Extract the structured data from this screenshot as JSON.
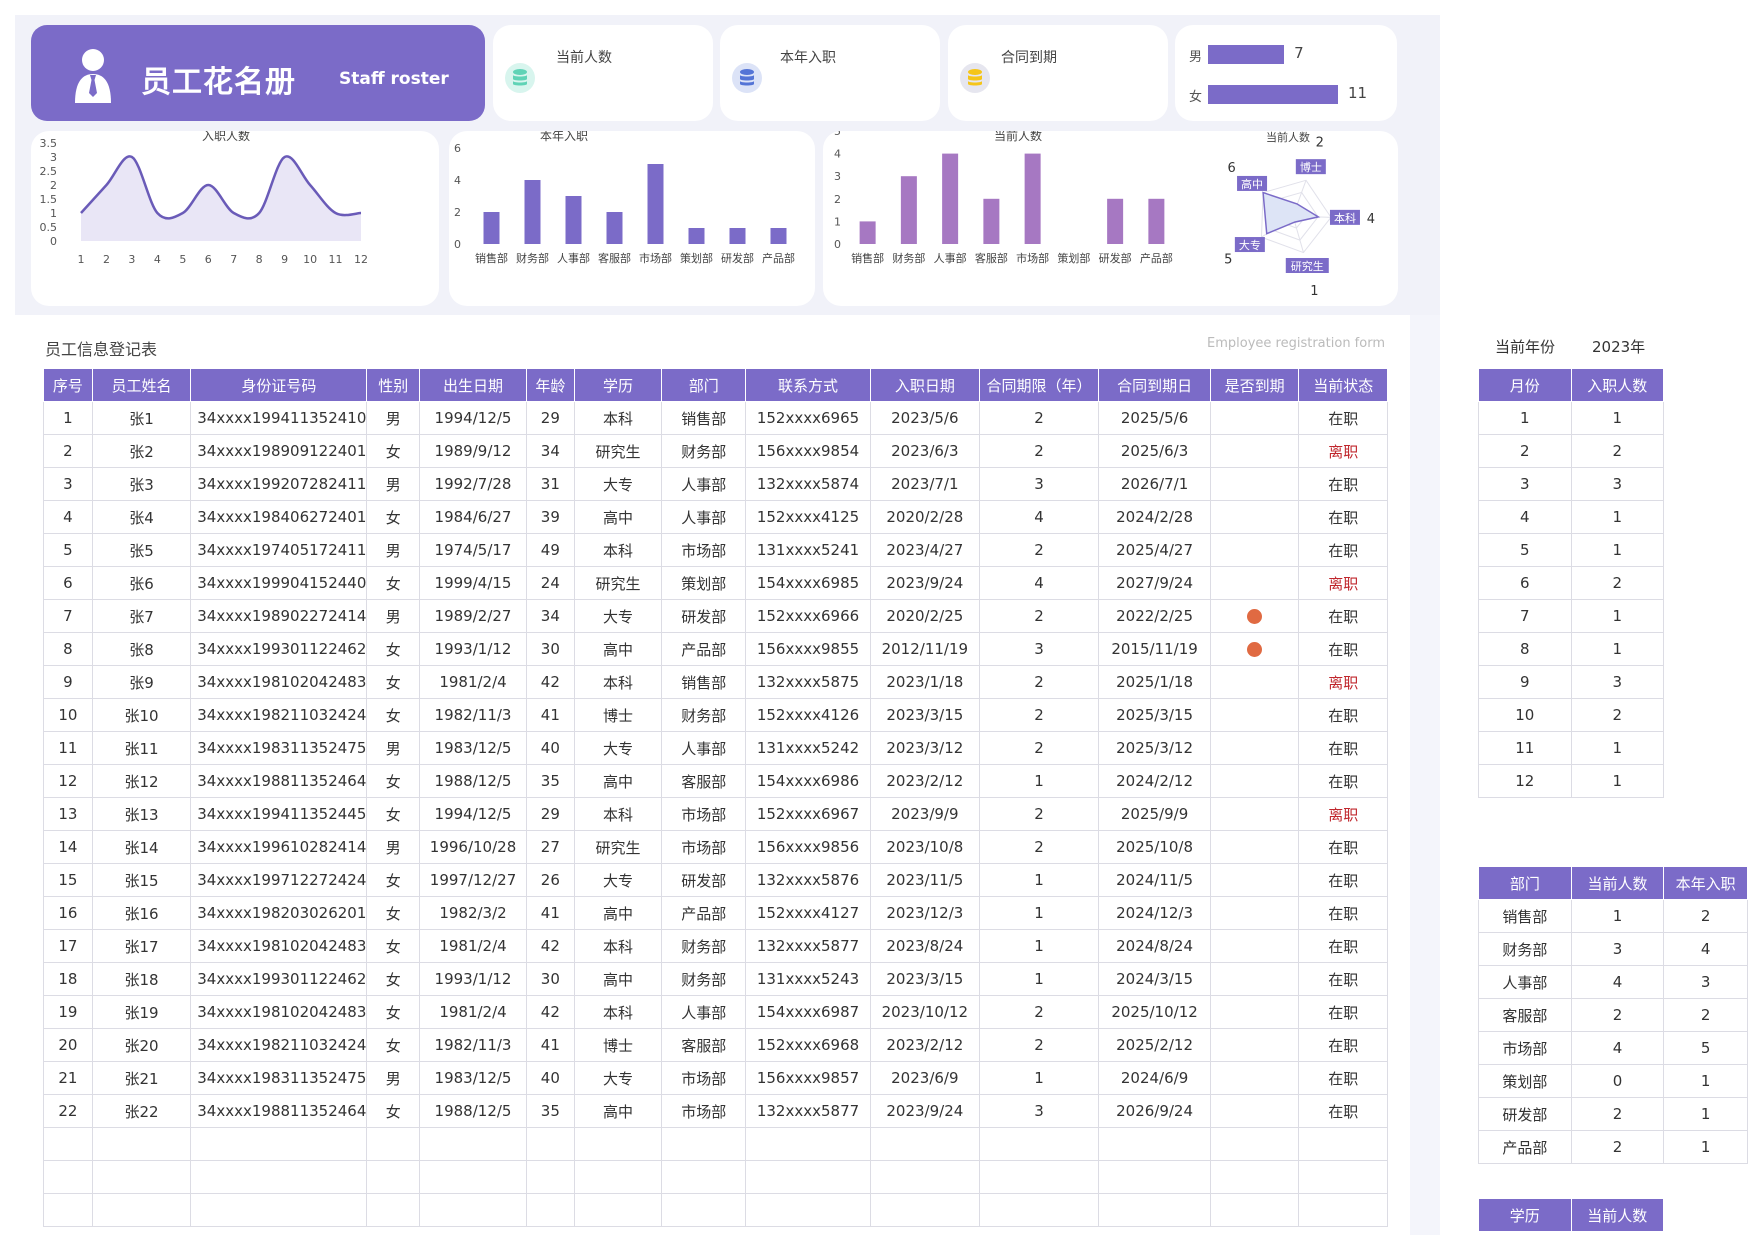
{
  "header": {
    "title_cn": "员工花名册",
    "title_en": "Staff roster"
  },
  "kpis": [
    {
      "label": "当前人数",
      "icon": "teal-database-icon",
      "color": "#5fd3b6"
    },
    {
      "label": "本年入职",
      "icon": "blue-database-icon",
      "color": "#5474d6"
    },
    {
      "label": "合同到期",
      "icon": "yellow-coin-stack-icon",
      "color": "#f5c518"
    }
  ],
  "gender": {
    "male_label": "男",
    "male_value": 7,
    "female_label": "女",
    "female_value": 11,
    "bar_color": "#7b6bc8"
  },
  "charts": {
    "line": {
      "type": "area",
      "title": "入职人数",
      "x": [
        "1",
        "2",
        "3",
        "4",
        "5",
        "6",
        "7",
        "8",
        "9",
        "10",
        "11",
        "12"
      ],
      "values": [
        1,
        2,
        3,
        1,
        1,
        2,
        1,
        1,
        3,
        2,
        1,
        1
      ],
      "yticks": [
        "0",
        "0.5",
        "1",
        "1.5",
        "2",
        "2.5",
        "3",
        "3.5"
      ],
      "ylim": [
        0,
        3.5
      ],
      "color": "#6a5bb8"
    },
    "bar_join": {
      "type": "bar",
      "title": "本年入职",
      "categories": [
        "销售部",
        "财务部",
        "人事部",
        "客服部",
        "市场部",
        "策划部",
        "研发部",
        "产品部"
      ],
      "values": [
        2,
        4,
        3,
        2,
        5,
        1,
        1,
        1
      ],
      "yticks": [
        "0",
        "2",
        "4",
        "6"
      ],
      "ylim": [
        0,
        6
      ],
      "color": "#7b6bc8"
    },
    "bar_current": {
      "type": "bar",
      "title": "当前人数",
      "categories": [
        "销售部",
        "财务部",
        "人事部",
        "客服部",
        "市场部",
        "策划部",
        "研发部",
        "产品部"
      ],
      "values": [
        1,
        3,
        4,
        2,
        4,
        0,
        2,
        2
      ],
      "yticks": [
        "0",
        "1",
        "2",
        "3",
        "4",
        "5"
      ],
      "ylim": [
        0,
        5
      ],
      "color": "#a678c2"
    },
    "radar": {
      "type": "radar",
      "title": "当前人数",
      "categories": [
        "博士",
        "本科",
        "研究生",
        "大专",
        "高中"
      ],
      "values": [
        2,
        4,
        1,
        5,
        6
      ],
      "max": 6,
      "color": "#7b6bc8"
    }
  },
  "registration": {
    "title": "员工信息登记表",
    "title_en": "Employee registration form",
    "columns": [
      "序号",
      "员工姓名",
      "身份证号码",
      "性别",
      "出生日期",
      "年龄",
      "学历",
      "部门",
      "联系方式",
      "入职日期",
      "合同期限（年）",
      "合同到期日",
      "是否到期",
      "当前状态"
    ],
    "rows": [
      [
        "1",
        "张1",
        "34xxxx199411352410",
        "男",
        "1994/12/5",
        "29",
        "本科",
        "销售部",
        "152xxxx6965",
        "2023/5/6",
        "2",
        "2025/5/6",
        "",
        "在职"
      ],
      [
        "2",
        "张2",
        "34xxxx198909122401",
        "女",
        "1989/9/12",
        "34",
        "研究生",
        "财务部",
        "156xxxx9854",
        "2023/6/3",
        "2",
        "2025/6/3",
        "",
        "离职"
      ],
      [
        "3",
        "张3",
        "34xxxx199207282411",
        "男",
        "1992/7/28",
        "31",
        "大专",
        "人事部",
        "132xxxx5874",
        "2023/7/1",
        "3",
        "2026/7/1",
        "",
        "在职"
      ],
      [
        "4",
        "张4",
        "34xxxx198406272401",
        "女",
        "1984/6/27",
        "39",
        "高中",
        "人事部",
        "152xxxx4125",
        "2020/2/28",
        "4",
        "2024/2/28",
        "",
        "在职"
      ],
      [
        "5",
        "张5",
        "34xxxx197405172411",
        "男",
        "1974/5/17",
        "49",
        "本科",
        "市场部",
        "131xxxx5241",
        "2023/4/27",
        "2",
        "2025/4/27",
        "",
        "在职"
      ],
      [
        "6",
        "张6",
        "34xxxx199904152440",
        "女",
        "1999/4/15",
        "24",
        "研究生",
        "策划部",
        "154xxxx6985",
        "2023/9/24",
        "4",
        "2027/9/24",
        "",
        "离职"
      ],
      [
        "7",
        "张7",
        "34xxxx198902272414",
        "男",
        "1989/2/27",
        "34",
        "大专",
        "研发部",
        "152xxxx6966",
        "2020/2/25",
        "2",
        "2022/2/25",
        "dot",
        "在职"
      ],
      [
        "8",
        "张8",
        "34xxxx199301122462",
        "女",
        "1993/1/12",
        "30",
        "高中",
        "产品部",
        "156xxxx9855",
        "2012/11/19",
        "3",
        "2015/11/19",
        "dot",
        "在职"
      ],
      [
        "9",
        "张9",
        "34xxxx198102042483",
        "女",
        "1981/2/4",
        "42",
        "本科",
        "销售部",
        "132xxxx5875",
        "2023/1/18",
        "2",
        "2025/1/18",
        "",
        "离职"
      ],
      [
        "10",
        "张10",
        "34xxxx198211032424",
        "女",
        "1982/11/3",
        "41",
        "博士",
        "财务部",
        "152xxxx4126",
        "2023/3/15",
        "2",
        "2025/3/15",
        "",
        "在职"
      ],
      [
        "11",
        "张11",
        "34xxxx198311352475",
        "男",
        "1983/12/5",
        "40",
        "大专",
        "人事部",
        "131xxxx5242",
        "2023/3/12",
        "2",
        "2025/3/12",
        "",
        "在职"
      ],
      [
        "12",
        "张12",
        "34xxxx198811352464",
        "女",
        "1988/12/5",
        "35",
        "高中",
        "客服部",
        "154xxxx6986",
        "2023/2/12",
        "1",
        "2024/2/12",
        "",
        "在职"
      ],
      [
        "13",
        "张13",
        "34xxxx199411352445",
        "女",
        "1994/12/5",
        "29",
        "本科",
        "市场部",
        "152xxxx6967",
        "2023/9/9",
        "2",
        "2025/9/9",
        "",
        "离职"
      ],
      [
        "14",
        "张14",
        "34xxxx199610282414",
        "男",
        "1996/10/28",
        "27",
        "研究生",
        "市场部",
        "156xxxx9856",
        "2023/10/8",
        "2",
        "2025/10/8",
        "",
        "在职"
      ],
      [
        "15",
        "张15",
        "34xxxx199712272424",
        "女",
        "1997/12/27",
        "26",
        "大专",
        "研发部",
        "132xxxx5876",
        "2023/11/5",
        "1",
        "2024/11/5",
        "",
        "在职"
      ],
      [
        "16",
        "张16",
        "34xxxx198203026201",
        "女",
        "1982/3/2",
        "41",
        "高中",
        "产品部",
        "152xxxx4127",
        "2023/12/3",
        "1",
        "2024/12/3",
        "",
        "在职"
      ],
      [
        "17",
        "张17",
        "34xxxx198102042483",
        "女",
        "1981/2/4",
        "42",
        "本科",
        "财务部",
        "132xxxx5877",
        "2023/8/24",
        "1",
        "2024/8/24",
        "",
        "在职"
      ],
      [
        "18",
        "张18",
        "34xxxx199301122462",
        "女",
        "1993/1/12",
        "30",
        "高中",
        "财务部",
        "131xxxx5243",
        "2023/3/15",
        "1",
        "2024/3/15",
        "",
        "在职"
      ],
      [
        "19",
        "张19",
        "34xxxx198102042483",
        "女",
        "1981/2/4",
        "42",
        "本科",
        "人事部",
        "154xxxx6987",
        "2023/10/12",
        "2",
        "2025/10/12",
        "",
        "在职"
      ],
      [
        "20",
        "张20",
        "34xxxx198211032424",
        "女",
        "1982/11/3",
        "41",
        "博士",
        "客服部",
        "152xxxx6968",
        "2023/2/12",
        "2",
        "2025/2/12",
        "",
        "在职"
      ],
      [
        "21",
        "张21",
        "34xxxx198311352475",
        "男",
        "1983/12/5",
        "40",
        "大专",
        "市场部",
        "156xxxx9857",
        "2023/6/9",
        "1",
        "2024/6/9",
        "",
        "在职"
      ],
      [
        "22",
        "张22",
        "34xxxx198811352464",
        "女",
        "1988/12/5",
        "35",
        "高中",
        "市场部",
        "132xxxx5877",
        "2023/9/24",
        "3",
        "2026/9/24",
        "",
        "在职"
      ]
    ],
    "empty_rows": 3,
    "status_left": "离职"
  },
  "side": {
    "year_label": "当前年份",
    "year_value": "2023年",
    "monthly": {
      "columns": [
        "月份",
        "入职人数"
      ],
      "rows": [
        [
          "1",
          "1"
        ],
        [
          "2",
          "2"
        ],
        [
          "3",
          "3"
        ],
        [
          "4",
          "1"
        ],
        [
          "5",
          "1"
        ],
        [
          "6",
          "2"
        ],
        [
          "7",
          "1"
        ],
        [
          "8",
          "1"
        ],
        [
          "9",
          "3"
        ],
        [
          "10",
          "2"
        ],
        [
          "11",
          "1"
        ],
        [
          "12",
          "1"
        ]
      ]
    },
    "department": {
      "columns": [
        "部门",
        "当前人数",
        "本年入职"
      ],
      "rows": [
        [
          "销售部",
          "1",
          "2"
        ],
        [
          "财务部",
          "3",
          "4"
        ],
        [
          "人事部",
          "4",
          "3"
        ],
        [
          "客服部",
          "2",
          "2"
        ],
        [
          "市场部",
          "4",
          "5"
        ],
        [
          "策划部",
          "0",
          "1"
        ],
        [
          "研发部",
          "2",
          "1"
        ],
        [
          "产品部",
          "2",
          "1"
        ]
      ]
    },
    "education": {
      "columns": [
        "学历",
        "当前人数"
      ]
    }
  }
}
